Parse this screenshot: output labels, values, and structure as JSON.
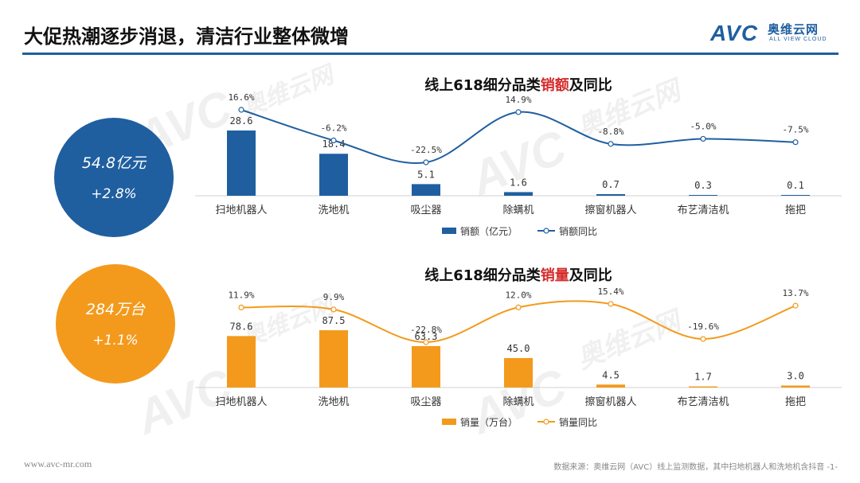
{
  "header": {
    "title": "大促热潮逐步消退，清洁行业整体微增",
    "logo_mark": "AVC",
    "logo_cn": "奥维云网",
    "logo_en": "ALL VIEW CLOUD"
  },
  "watermark": {
    "mark": "AVC",
    "cn": "奥维云网",
    "en": "ALL VIEW CLOUD"
  },
  "summary": {
    "sales_amount": "54.8亿元",
    "sales_amount_yoy": "+2.8%",
    "sales_volume": "284万台",
    "sales_volume_yoy": "+1.1%"
  },
  "footer": {
    "website": "www.avc-mr.com",
    "source": "数据来源：奥维云网（AVC）线上监测数据，其中扫地机器人和洗地机含抖音 -1-"
  },
  "colors": {
    "blue": "#1f5fa0",
    "orange": "#f39a1c"
  },
  "chart_data": [
    {
      "type": "bar",
      "title_prefix": "线上618细分品类",
      "title_highlight": "销额",
      "title_suffix": "及同比",
      "categories": [
        "扫地机器人",
        "洗地机",
        "吸尘器",
        "除螨机",
        "擦窗机器人",
        "布艺清洁机",
        "拖把"
      ],
      "series": [
        {
          "name": "销额（亿元）",
          "type": "bar",
          "values": [
            28.6,
            18.4,
            5.1,
            1.6,
            0.7,
            0.3,
            0.1
          ],
          "labels": [
            "28.6",
            "18.4",
            "5.1",
            "1.6",
            "0.7",
            "0.3",
            "0.1"
          ]
        },
        {
          "name": "销额同比",
          "type": "line",
          "values": [
            16.6,
            -6.2,
            -22.5,
            14.9,
            -8.8,
            -5.0,
            -7.5
          ],
          "labels": [
            "16.6%",
            "-6.2%",
            "-22.5%",
            "14.9%",
            "-8.8%",
            "-5.0%",
            "-7.5%"
          ]
        }
      ],
      "legend_position": "bottom"
    },
    {
      "type": "bar",
      "title_prefix": "线上618细分品类",
      "title_highlight": "销量",
      "title_suffix": "及同比",
      "categories": [
        "扫地机器人",
        "洗地机",
        "吸尘器",
        "除螨机",
        "擦窗机器人",
        "布艺清洁机",
        "拖把"
      ],
      "series": [
        {
          "name": "销量（万台）",
          "type": "bar",
          "values": [
            78.6,
            87.5,
            63.3,
            45.0,
            4.5,
            1.7,
            3.0
          ],
          "labels": [
            "78.6",
            "87.5",
            "63.3",
            "45.0",
            "4.5",
            "1.7",
            "3.0"
          ]
        },
        {
          "name": "销量同比",
          "type": "line",
          "values": [
            11.9,
            9.9,
            -22.8,
            12.0,
            15.4,
            -19.6,
            13.7
          ],
          "labels": [
            "11.9%",
            "9.9%",
            "-22.8%",
            "12.0%",
            "15.4%",
            "-19.6%",
            "13.7%"
          ]
        }
      ],
      "legend_position": "bottom"
    }
  ]
}
